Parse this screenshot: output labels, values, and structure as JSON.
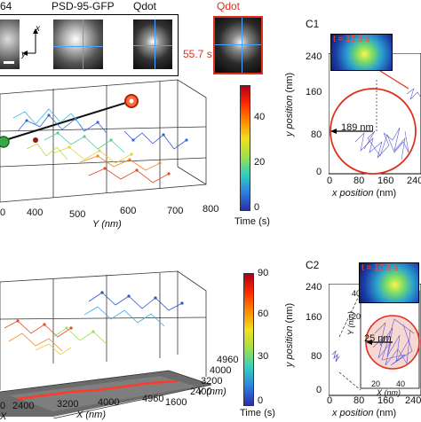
{
  "top_strip": {
    "label_1": "64",
    "label_2": "PSD-95-GFP",
    "label_3": "Qdot",
    "label_4": "Qdot",
    "time": "55.7 s",
    "axis_x": "x",
    "axis_y": "y"
  },
  "plot_a": {
    "y_ticks": [
      "400",
      "500",
      "600",
      "700",
      "800"
    ],
    "y_label": "Y (nm)",
    "zero": "0"
  },
  "colorbar_a": {
    "ticks": [
      "40",
      "20",
      "0"
    ],
    "label": "Time (s)"
  },
  "plot_b": {
    "x_ticks": [
      "2400",
      "3200",
      "4000",
      "4960"
    ],
    "x_label": "X (nm)",
    "y_ticks": [
      "4960",
      "4000",
      "3200",
      "2400",
      "1600"
    ],
    "y_label": "Y (nm)",
    "partial_tick": "0",
    "partial_axis": "X"
  },
  "colorbar_b": {
    "ticks": [
      "90",
      "60",
      "30",
      "0"
    ],
    "label": "Time (s)"
  },
  "panel_c1": {
    "label": "C1",
    "time": "t = 15.6 s",
    "y_ticks": [
      "240",
      "160",
      "80",
      "0"
    ],
    "x_ticks": [
      "0",
      "80",
      "160",
      "240"
    ],
    "y_label": "y position",
    "y_unit": "(nm)",
    "x_label": "x position",
    "x_unit": "(nm)",
    "scale": "189 nm"
  },
  "panel_c2": {
    "label": "C2",
    "time": "t = 10.6 s",
    "y_ticks": [
      "240",
      "160",
      "80",
      "0"
    ],
    "x_ticks": [
      "0",
      "80",
      "160",
      "240"
    ],
    "y_label": "y position",
    "y_unit": "(nm)",
    "x_label": "x position",
    "x_unit": "(nm)",
    "inset_y_ticks": [
      "40",
      "20"
    ],
    "inset_x_ticks": [
      "20",
      "40"
    ],
    "inset_y_label": "Y (nm)",
    "inset_x_label": "X (nm)",
    "scale": "25 nm"
  }
}
